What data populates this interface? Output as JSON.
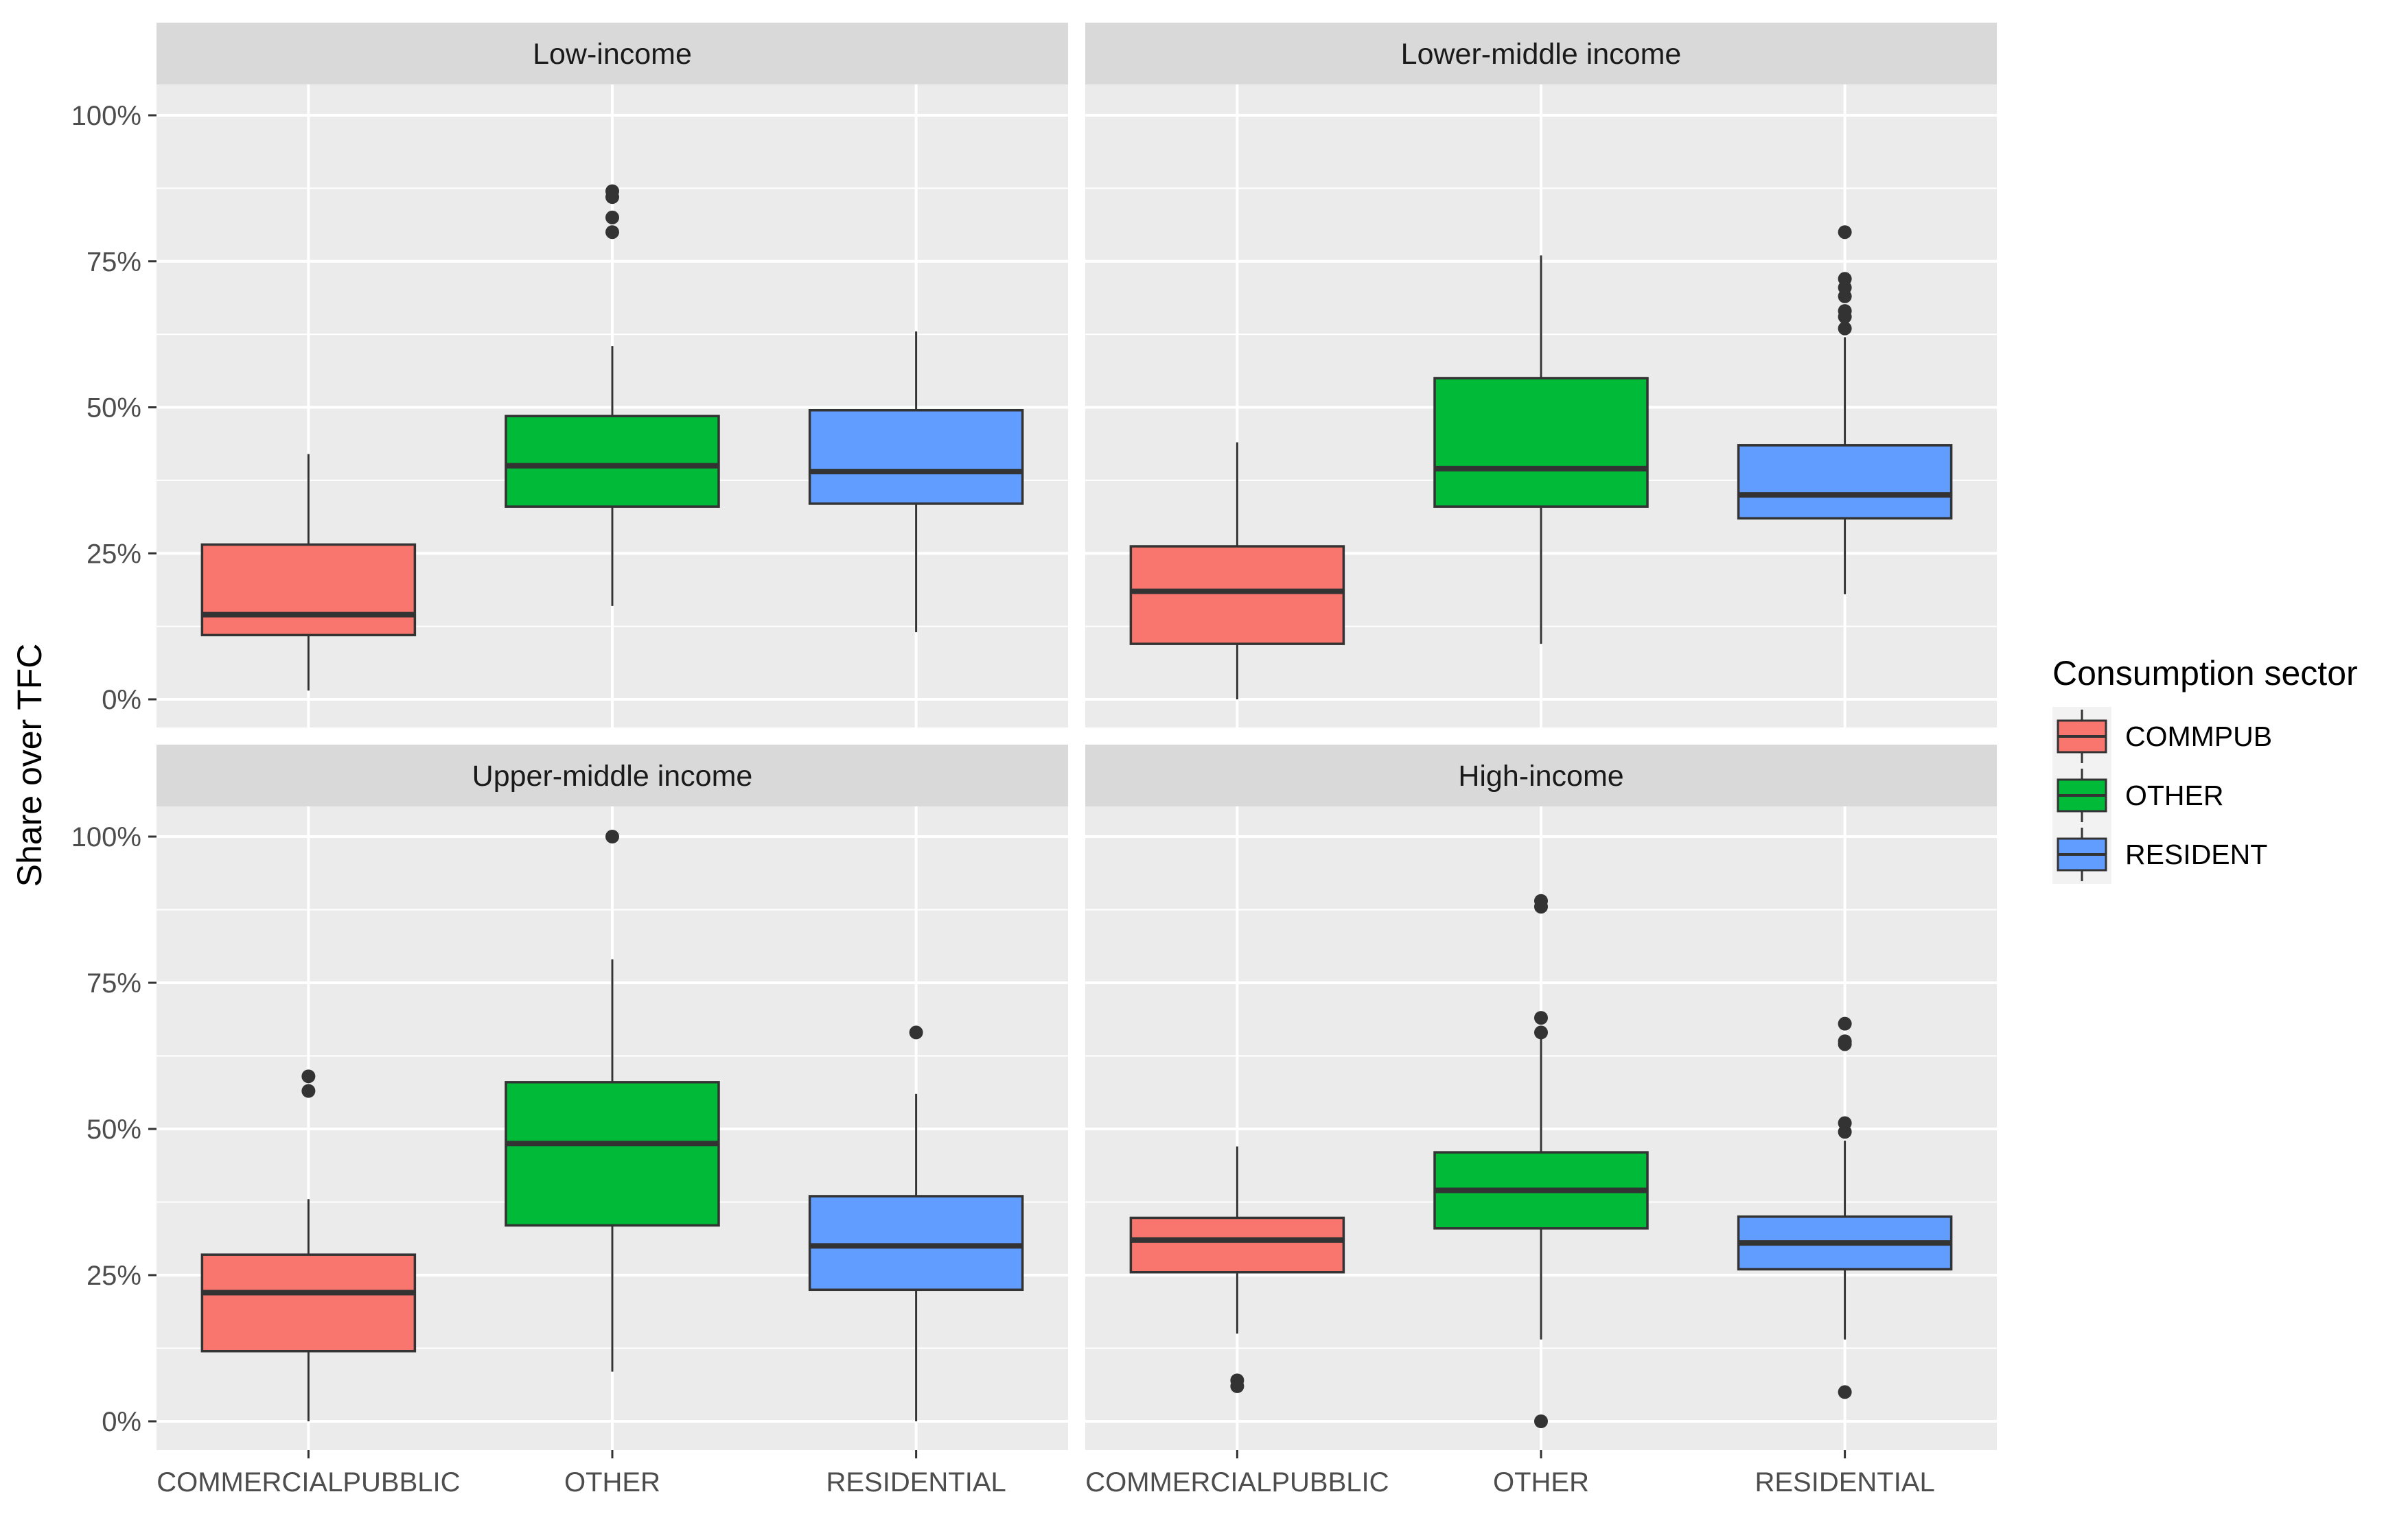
{
  "chart_data": {
    "type": "boxplot",
    "title": "",
    "ylabel": "Share over TFC",
    "xlabel": "",
    "ylim": [
      -0.05,
      1.1
    ],
    "yticks": [
      0,
      0.25,
      0.5,
      0.75,
      1.0
    ],
    "ytick_labels": [
      "0%",
      "25%",
      "50%",
      "75%",
      "100%"
    ],
    "categories": [
      "COMMERCIALPUBBLIC",
      "OTHER",
      "RESIDENTIAL"
    ],
    "legend": {
      "title": "Consumption sector",
      "position": "right",
      "entries": [
        {
          "label": "COMMPUB",
          "color": "#F8766D"
        },
        {
          "label": "OTHER",
          "color": "#00BA38"
        },
        {
          "label": "RESIDENT",
          "color": "#619CFF"
        }
      ]
    },
    "panels": [
      {
        "title": "Low-income",
        "boxes": [
          {
            "category": "COMMERCIALPUBBLIC",
            "whisker_low": 0.015,
            "q1": 0.11,
            "median": 0.145,
            "q3": 0.265,
            "whisker_high": 0.42,
            "outliers": []
          },
          {
            "category": "OTHER",
            "whisker_low": 0.16,
            "q1": 0.33,
            "median": 0.4,
            "q3": 0.485,
            "whisker_high": 0.605,
            "outliers": [
              0.8,
              0.825,
              0.86,
              0.87
            ]
          },
          {
            "category": "RESIDENTIAL",
            "whisker_low": 0.115,
            "q1": 0.335,
            "median": 0.39,
            "q3": 0.495,
            "whisker_high": 0.63,
            "outliers": []
          }
        ]
      },
      {
        "title": "Lower-middle income",
        "boxes": [
          {
            "category": "COMMERCIALPUBBLIC",
            "whisker_low": 0.0,
            "q1": 0.095,
            "median": 0.185,
            "q3": 0.262,
            "whisker_high": 0.44,
            "outliers": []
          },
          {
            "category": "OTHER",
            "whisker_low": 0.095,
            "q1": 0.33,
            "median": 0.395,
            "q3": 0.55,
            "whisker_high": 0.76,
            "outliers": []
          },
          {
            "category": "RESIDENTIAL",
            "whisker_low": 0.18,
            "q1": 0.31,
            "median": 0.35,
            "q3": 0.435,
            "whisker_high": 0.62,
            "outliers": [
              0.635,
              0.655,
              0.665,
              0.69,
              0.705,
              0.72,
              0.8
            ]
          }
        ]
      },
      {
        "title": "Upper-middle income",
        "boxes": [
          {
            "category": "COMMERCIALPUBBLIC",
            "whisker_low": 0.0,
            "q1": 0.12,
            "median": 0.22,
            "q3": 0.285,
            "whisker_high": 0.38,
            "outliers": [
              0.565,
              0.59
            ]
          },
          {
            "category": "OTHER",
            "whisker_low": 0.085,
            "q1": 0.335,
            "median": 0.475,
            "q3": 0.58,
            "whisker_high": 0.79,
            "outliers": [
              1.0
            ]
          },
          {
            "category": "RESIDENTIAL",
            "whisker_low": 0.0,
            "q1": 0.225,
            "median": 0.3,
            "q3": 0.385,
            "whisker_high": 0.56,
            "outliers": [
              0.665
            ]
          }
        ]
      },
      {
        "title": "High-income",
        "boxes": [
          {
            "category": "COMMERCIALPUBBLIC",
            "whisker_low": 0.15,
            "q1": 0.255,
            "median": 0.31,
            "q3": 0.348,
            "whisker_high": 0.47,
            "outliers": [
              0.06,
              0.07
            ]
          },
          {
            "category": "OTHER",
            "whisker_low": 0.14,
            "q1": 0.33,
            "median": 0.395,
            "q3": 0.46,
            "whisker_high": 0.655,
            "outliers": [
              0.0,
              0.665,
              0.69,
              0.88,
              0.89
            ]
          },
          {
            "category": "RESIDENTIAL",
            "whisker_low": 0.14,
            "q1": 0.26,
            "median": 0.305,
            "q3": 0.35,
            "whisker_high": 0.48,
            "outliers": [
              0.05,
              0.495,
              0.51,
              0.645,
              0.65,
              0.68
            ]
          }
        ]
      }
    ]
  }
}
